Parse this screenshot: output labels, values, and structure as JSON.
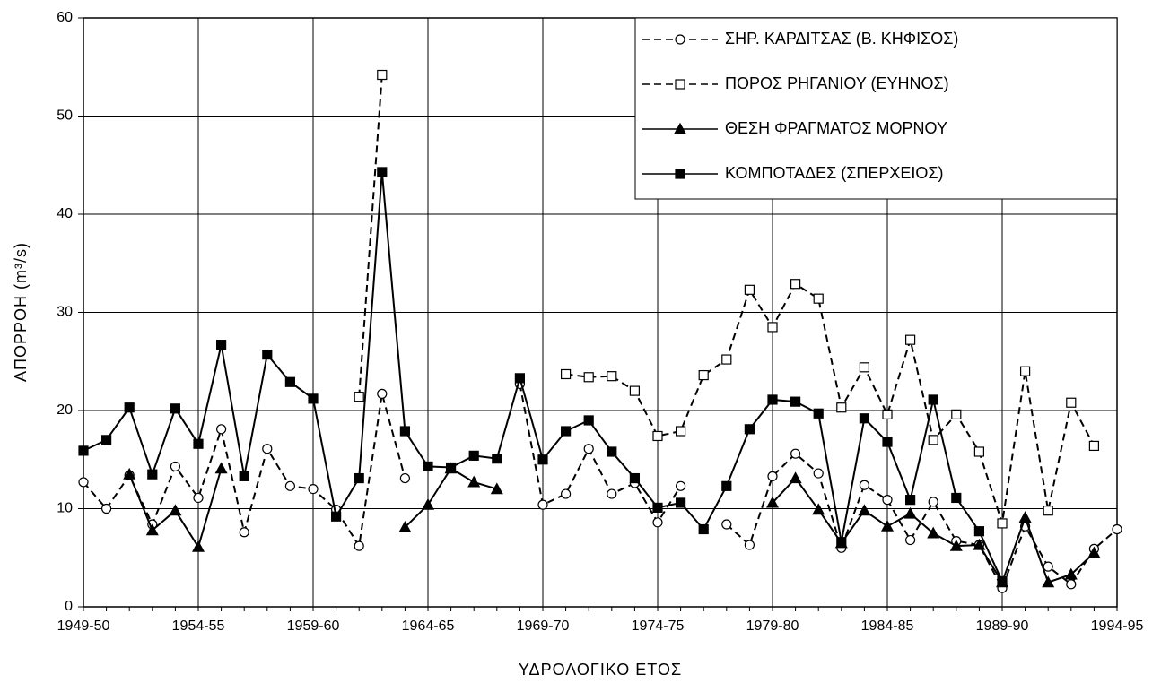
{
  "chart_data": {
    "type": "line",
    "xlabel": "ΥΔΡΟΛΟΓΙΚΟ ΕΤΟΣ",
    "ylabel": "ΑΠΟΡΡΟΗ (m³/s)",
    "categories": [
      "1949-50",
      null,
      null,
      null,
      null,
      "1954-55",
      null,
      null,
      null,
      null,
      "1959-60",
      null,
      null,
      null,
      null,
      "1964-65",
      null,
      null,
      null,
      null,
      "1969-70",
      null,
      null,
      null,
      null,
      "1974-75",
      null,
      null,
      null,
      null,
      "1979-80",
      null,
      null,
      null,
      null,
      "1984-85",
      null,
      null,
      null,
      null,
      "1989-90",
      null,
      null,
      null,
      null,
      "1994-95"
    ],
    "ylim": [
      0,
      60
    ],
    "yticks": [
      0,
      10,
      20,
      30,
      40,
      50,
      60
    ],
    "grid": true,
    "legend": "upper right",
    "series": [
      {
        "name": "ΣΗΡ. ΚΑΡΔΙΤΣΑΣ (Β. ΚΗΦΙΣΟΣ)",
        "color": "#000000",
        "dashed": true,
        "marker": "circle",
        "filled": false,
        "values": [
          12.7,
          10.0,
          13.4,
          8.4,
          14.3,
          11.1,
          18.1,
          7.6,
          16.1,
          12.3,
          12.0,
          9.9,
          6.2,
          21.7,
          13.1,
          null,
          null,
          null,
          null,
          22.7,
          10.4,
          11.5,
          16.1,
          11.5,
          12.6,
          8.6,
          12.3,
          null,
          8.4,
          6.3,
          13.3,
          15.6,
          13.6,
          6.0,
          12.4,
          10.9,
          6.8,
          10.7,
          6.7,
          6.3,
          1.9,
          8.2,
          4.1,
          2.3,
          5.9,
          7.9
        ]
      },
      {
        "name": "ΠΟΡΟΣ ΡΗΓΑΝΙΟΥ (ΕΥΗΝΟΣ)",
        "color": "#000000",
        "dashed": true,
        "marker": "square",
        "filled": false,
        "values": [
          null,
          null,
          null,
          null,
          null,
          null,
          null,
          null,
          null,
          null,
          null,
          null,
          21.4,
          54.2,
          null,
          null,
          null,
          null,
          null,
          null,
          null,
          23.7,
          23.4,
          23.5,
          22.0,
          17.4,
          17.9,
          23.6,
          25.2,
          32.3,
          28.5,
          32.9,
          31.4,
          20.3,
          24.4,
          19.6,
          27.2,
          17.0,
          19.6,
          15.8,
          8.5,
          24.0,
          9.8,
          20.8,
          16.4,
          null
        ]
      },
      {
        "name": "ΘΕΣΗ ΦΡΑΓΜΑΤΟΣ ΜΟΡΝΟΥ",
        "color": "#000000",
        "dashed": false,
        "marker": "triangle",
        "filled": true,
        "values": [
          null,
          null,
          13.5,
          7.8,
          9.8,
          6.1,
          14.1,
          null,
          null,
          null,
          null,
          null,
          null,
          null,
          8.1,
          10.4,
          14.1,
          12.7,
          12.0,
          null,
          null,
          null,
          null,
          null,
          null,
          null,
          null,
          null,
          null,
          null,
          10.6,
          13.1,
          9.9,
          6.5,
          9.8,
          8.2,
          9.5,
          7.5,
          6.2,
          6.3,
          2.5,
          9.1,
          2.5,
          3.3,
          5.5,
          null
        ]
      },
      {
        "name": "ΚΟΜΠΟΤΑΔΕΣ (ΣΠΕΡΧΕΙΟΣ)",
        "color": "#000000",
        "dashed": false,
        "marker": "square",
        "filled": true,
        "values": [
          15.9,
          17.0,
          20.3,
          13.5,
          20.2,
          16.6,
          26.7,
          13.3,
          25.7,
          22.9,
          21.2,
          9.2,
          13.1,
          44.3,
          17.9,
          14.3,
          14.2,
          15.4,
          15.1,
          23.3,
          15.0,
          17.9,
          19.0,
          15.8,
          13.1,
          10.1,
          10.6,
          7.9,
          12.3,
          18.1,
          21.1,
          20.9,
          19.7,
          6.6,
          19.2,
          16.8,
          10.9,
          21.1,
          11.1,
          7.7,
          2.6,
          null,
          null,
          null,
          null,
          null
        ]
      }
    ]
  }
}
